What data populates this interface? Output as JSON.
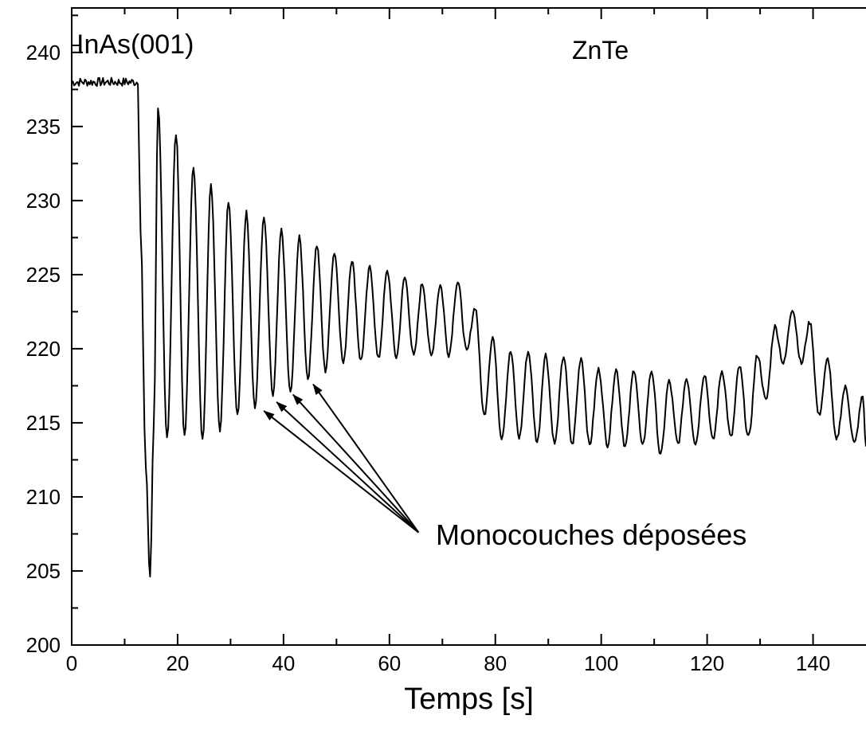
{
  "chart_data": {
    "type": "line",
    "title": "",
    "xlabel": "Temps [s]",
    "ylabel": "",
    "xlim": [
      0,
      150
    ],
    "ylim": [
      200,
      243
    ],
    "x_ticks": [
      0,
      20,
      40,
      60,
      80,
      100,
      120,
      140
    ],
    "y_ticks": [
      200,
      205,
      210,
      215,
      220,
      225,
      230,
      235,
      240
    ],
    "grid": false,
    "line_color": "#000000",
    "series": [
      {
        "x": [
          0,
          12.5,
          13,
          14,
          14.8,
          15.5,
          16.3,
          18.0,
          19.7,
          21.3,
          23.0,
          24.7,
          26.3,
          28.0,
          29.6,
          31.3,
          33.0,
          34.6,
          36.3,
          38.0,
          39.6,
          41.3,
          43.0,
          44.6,
          46.3,
          47.9,
          49.6,
          51.3,
          52.9,
          54.6,
          56.3,
          57.9,
          59.6,
          61.3,
          62.9,
          64.6,
          66.2,
          67.9,
          69.6,
          71.2,
          72.9,
          74.6,
          76.2,
          77.9,
          79.5,
          81.2,
          82.9,
          84.5,
          86.2,
          87.9,
          89.5,
          91.2,
          92.9,
          94.5,
          96.2,
          97.8,
          99.5,
          101.2,
          102.8,
          104.5,
          106.2,
          107.8,
          109.5,
          111.2,
          112.8,
          114.5,
          116.1,
          117.8,
          119.5,
          121.1,
          122.8,
          124.5,
          126.1,
          127.8,
          129.5,
          131.1,
          132.8,
          134.4,
          136.1,
          137.8,
          139.4,
          141.1,
          142.8,
          144.4,
          146.1,
          147.8,
          149.4,
          150
        ],
        "y": [
          238.0,
          238.0,
          228.0,
          212.0,
          204.5,
          215.0,
          236.3,
          214.0,
          234.5,
          214.0,
          232.3,
          213.8,
          231.0,
          214.5,
          230.0,
          215.5,
          229.2,
          216.0,
          228.8,
          216.8,
          228.0,
          217.0,
          227.5,
          218.0,
          227.0,
          218.5,
          226.5,
          219.0,
          226.0,
          219.2,
          225.5,
          219.3,
          225.2,
          219.4,
          224.8,
          219.5,
          224.4,
          219.5,
          224.3,
          219.6,
          224.5,
          219.8,
          222.8,
          215.5,
          220.8,
          214.0,
          219.8,
          214.0,
          219.8,
          213.7,
          219.6,
          213.6,
          219.5,
          213.5,
          219.4,
          213.5,
          218.6,
          213.5,
          218.6,
          213.4,
          218.6,
          213.4,
          218.5,
          212.8,
          217.8,
          213.6,
          218.0,
          213.6,
          218.3,
          213.8,
          218.5,
          214.0,
          218.8,
          214.0,
          219.6,
          216.5,
          221.5,
          219.0,
          222.7,
          219.0,
          221.8,
          215.5,
          219.3,
          213.8,
          217.4,
          213.6,
          216.8,
          213.4
        ]
      }
    ],
    "annotations": [
      {
        "text": "InAs(001)"
      },
      {
        "text": "ZnTe"
      },
      {
        "text": "Monocouches déposées",
        "arrow_from": {
          "x": 65.5,
          "y": 207.6
        },
        "arrow_targets": [
          {
            "x": 36.3,
            "y": 215.8
          },
          {
            "x": 38.7,
            "y": 216.4
          },
          {
            "x": 41.8,
            "y": 216.9
          },
          {
            "x": 45.6,
            "y": 217.6
          }
        ]
      }
    ]
  }
}
